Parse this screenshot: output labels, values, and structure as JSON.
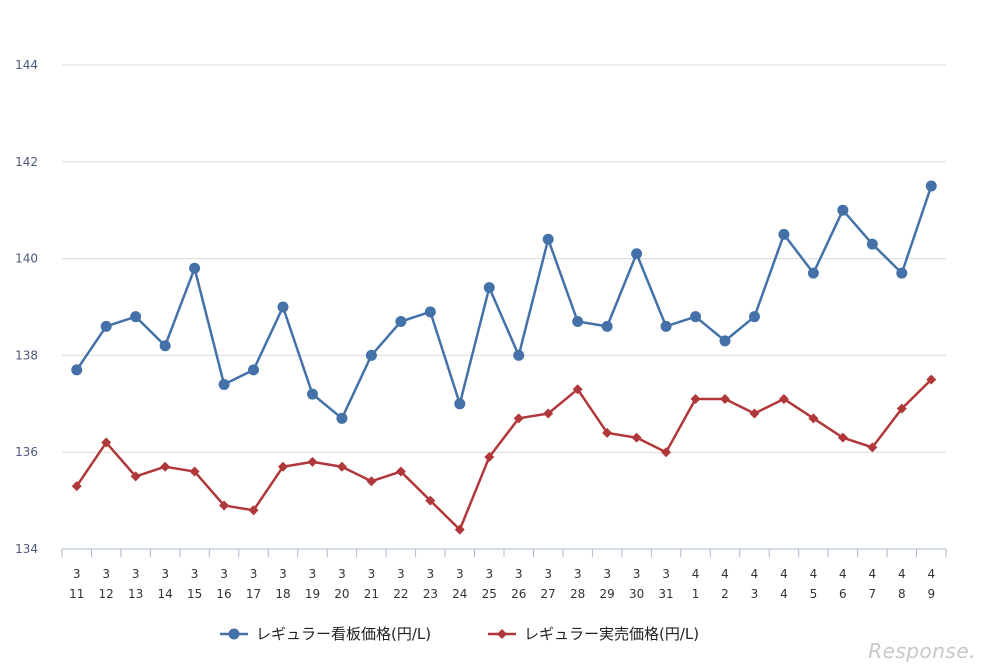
{
  "chart_data": {
    "type": "line",
    "title": "",
    "xlabel": "",
    "ylabel": "",
    "ylim": [
      134,
      145
    ],
    "yticks": [
      "134",
      "136",
      "138",
      "140",
      "142",
      "144"
    ],
    "categories": [
      {
        "month": "3",
        "day": "11"
      },
      {
        "month": "3",
        "day": "12"
      },
      {
        "month": "3",
        "day": "13"
      },
      {
        "month": "3",
        "day": "14"
      },
      {
        "month": "3",
        "day": "15"
      },
      {
        "month": "3",
        "day": "16"
      },
      {
        "month": "3",
        "day": "17"
      },
      {
        "month": "3",
        "day": "18"
      },
      {
        "month": "3",
        "day": "19"
      },
      {
        "month": "3",
        "day": "20"
      },
      {
        "month": "3",
        "day": "21"
      },
      {
        "month": "3",
        "day": "22"
      },
      {
        "month": "3",
        "day": "23"
      },
      {
        "month": "3",
        "day": "24"
      },
      {
        "month": "3",
        "day": "25"
      },
      {
        "month": "3",
        "day": "26"
      },
      {
        "month": "3",
        "day": "27"
      },
      {
        "month": "3",
        "day": "28"
      },
      {
        "month": "3",
        "day": "29"
      },
      {
        "month": "3",
        "day": "30"
      },
      {
        "month": "3",
        "day": "31"
      },
      {
        "month": "4",
        "day": "1"
      },
      {
        "month": "4",
        "day": "2"
      },
      {
        "month": "4",
        "day": "3"
      },
      {
        "month": "4",
        "day": "4"
      },
      {
        "month": "4",
        "day": "5"
      },
      {
        "month": "4",
        "day": "6"
      },
      {
        "month": "4",
        "day": "7"
      },
      {
        "month": "4",
        "day": "8"
      },
      {
        "month": "4",
        "day": "9"
      }
    ],
    "series": [
      {
        "name": "レギュラー看板価格(円/L)",
        "color": "#4472a8",
        "marker": "circle",
        "values": [
          137.7,
          138.6,
          138.8,
          138.2,
          139.8,
          137.4,
          137.7,
          139.0,
          137.2,
          136.7,
          138.0,
          138.7,
          138.9,
          137.0,
          139.4,
          138.0,
          140.4,
          138.7,
          138.6,
          140.1,
          138.6,
          138.8,
          138.3,
          138.8,
          140.5,
          139.7,
          141.0,
          140.3,
          139.7,
          141.5
        ]
      },
      {
        "name": "レギュラー実売価格(円/L)",
        "color": "#b0383b",
        "marker": "diamond",
        "values": [
          135.3,
          136.2,
          135.5,
          135.7,
          135.6,
          134.9,
          134.8,
          135.7,
          135.8,
          135.7,
          135.4,
          135.6,
          135.0,
          134.4,
          135.9,
          136.7,
          136.8,
          137.3,
          136.4,
          136.3,
          136.0,
          137.1,
          137.1,
          136.8,
          137.1,
          136.7,
          136.3,
          136.1,
          136.9,
          137.5
        ]
      }
    ],
    "legend_position": "bottom-center"
  },
  "watermark": "Response."
}
